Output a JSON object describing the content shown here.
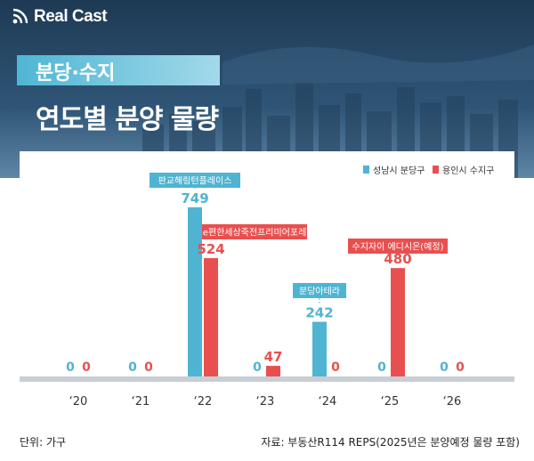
{
  "brand": {
    "logo_text": "Real Cast",
    "logo_icon": "signal-waves-icon"
  },
  "header": {
    "tag": "분당·수지",
    "title": "연도별 분양 물량"
  },
  "colors": {
    "accent_cyan": "#4fb6d4",
    "series_blue": "#4fb4d2",
    "series_red": "#e8504f",
    "header_bg": "#2b4d6b",
    "baseline_band": "#c9ced4"
  },
  "chart_data": {
    "type": "bar",
    "categories": [
      "‘20",
      "‘21",
      "‘22",
      "‘23",
      "‘24",
      "‘25",
      "‘26"
    ],
    "series": [
      {
        "name": "성남시 분당구",
        "color": "#4fb4d2",
        "values": [
          0,
          0,
          749,
          0,
          242,
          0,
          0
        ]
      },
      {
        "name": "용인시 수지구",
        "color": "#e8504f",
        "values": [
          0,
          0,
          524,
          47,
          0,
          480,
          0
        ]
      }
    ],
    "annotations": [
      {
        "text": "판교해링턴플레이스",
        "category": "‘22",
        "series": 0
      },
      {
        "text": "e편한세상죽전프리미어포레",
        "category": "‘22",
        "series": 1
      },
      {
        "text": "분당아테라",
        "category": "‘24",
        "series": 0
      },
      {
        "text": "수지자이 에디시온(예정)",
        "category": "‘25",
        "series": 1
      }
    ],
    "ylim": [
      0,
      800
    ],
    "legend_position": "top-right",
    "grid": false
  },
  "footer": {
    "unit": "단위: 가구",
    "source": "자료: 부동산R114 REPS(2025년은 분양예정 물량 포함)"
  }
}
